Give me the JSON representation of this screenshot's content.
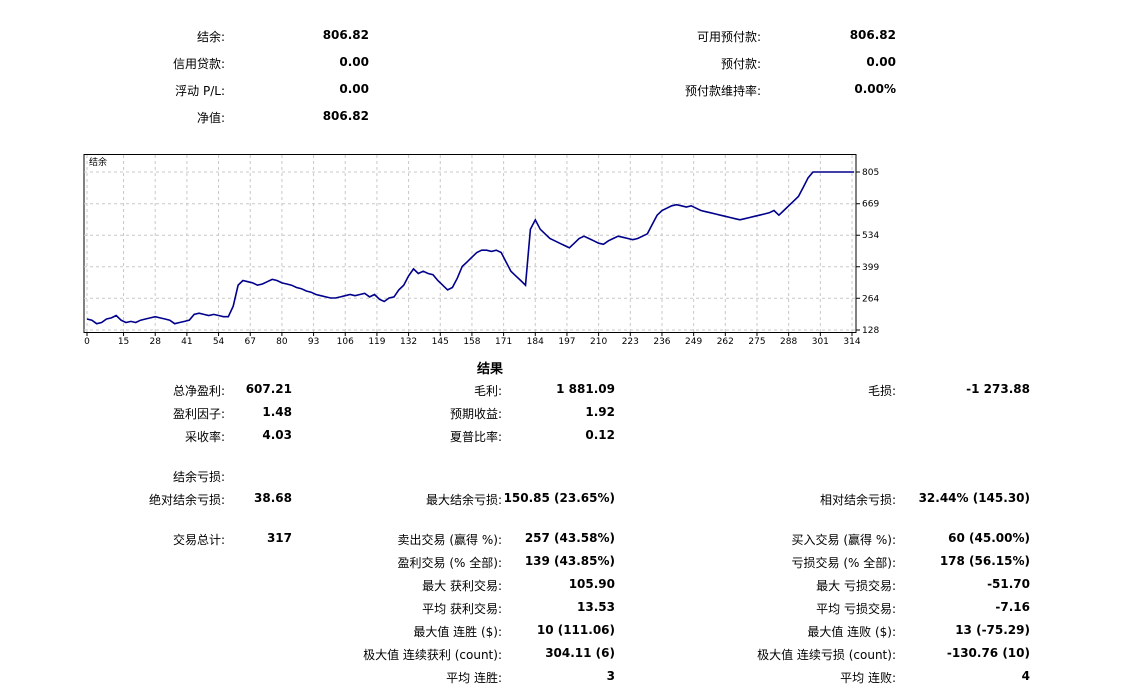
{
  "summary": {
    "balance_label": "结余:",
    "balance": "806.82",
    "credit_label": "信用贷款:",
    "credit": "0.00",
    "floating_label": "浮动 P/L:",
    "floating": "0.00",
    "equity_label": "净值:",
    "equity": "806.82",
    "free_margin_label": "可用预付款:",
    "free_margin": "806.82",
    "margin_label": "预付款:",
    "margin": "0.00",
    "margin_level_label": "预付款维持率:",
    "margin_level": "0.00%"
  },
  "chart_data": {
    "type": "line",
    "title": "结余",
    "x_ticks": [
      "0",
      "15",
      "28",
      "41",
      "54",
      "67",
      "80",
      "93",
      "106",
      "119",
      "132",
      "145",
      "158",
      "171",
      "184",
      "197",
      "210",
      "223",
      "236",
      "249",
      "262",
      "275",
      "288",
      "301",
      "314"
    ],
    "x_tick_values": [
      0,
      15,
      28,
      41,
      54,
      67,
      80,
      93,
      106,
      119,
      132,
      145,
      158,
      171,
      184,
      197,
      210,
      223,
      236,
      249,
      262,
      275,
      288,
      301,
      314
    ],
    "y_ticks": [
      "128",
      "264",
      "399",
      "534",
      "669",
      "805"
    ],
    "y_tick_values": [
      128,
      264,
      399,
      534,
      669,
      805
    ],
    "xlim": [
      0,
      314
    ],
    "ylim": [
      128,
      805
    ],
    "grid": true,
    "series": [
      {
        "color": "#00008b",
        "x": [
          0,
          2,
          4,
          6,
          8,
          10,
          12,
          14,
          16,
          18,
          20,
          22,
          24,
          26,
          28,
          30,
          32,
          34,
          36,
          38,
          40,
          42,
          44,
          46,
          48,
          50,
          52,
          54,
          56,
          58,
          60,
          62,
          64,
          66,
          68,
          70,
          72,
          74,
          76,
          78,
          80,
          82,
          84,
          86,
          88,
          90,
          92,
          94,
          96,
          98,
          100,
          102,
          104,
          106,
          108,
          110,
          112,
          114,
          116,
          118,
          120,
          122,
          124,
          126,
          128,
          130,
          132,
          134,
          136,
          138,
          140,
          142,
          144,
          146,
          148,
          150,
          152,
          154,
          156,
          158,
          160,
          162,
          164,
          166,
          168,
          170,
          172,
          174,
          176,
          178,
          180,
          182,
          184,
          186,
          188,
          190,
          192,
          194,
          196,
          198,
          200,
          202,
          204,
          206,
          208,
          210,
          212,
          214,
          216,
          218,
          220,
          222,
          224,
          226,
          228,
          230,
          232,
          234,
          236,
          238,
          240,
          242,
          244,
          246,
          248,
          250,
          252,
          254,
          256,
          258,
          260,
          262,
          264,
          266,
          268,
          270,
          272,
          274,
          276,
          278,
          280,
          282,
          284,
          286,
          288,
          290,
          292,
          294,
          296,
          298,
          300,
          302,
          304,
          306,
          308,
          310,
          312,
          314,
          316
        ],
        "y": [
          175,
          170,
          155,
          160,
          175,
          180,
          190,
          170,
          160,
          165,
          160,
          170,
          175,
          180,
          185,
          180,
          175,
          170,
          155,
          160,
          165,
          170,
          195,
          200,
          195,
          190,
          195,
          190,
          185,
          185,
          230,
          320,
          340,
          335,
          330,
          320,
          325,
          335,
          345,
          340,
          330,
          325,
          320,
          310,
          305,
          295,
          290,
          280,
          275,
          270,
          265,
          265,
          270,
          275,
          280,
          275,
          280,
          285,
          270,
          280,
          260,
          250,
          265,
          270,
          300,
          320,
          360,
          390,
          370,
          380,
          370,
          365,
          340,
          320,
          300,
          310,
          350,
          400,
          420,
          440,
          460,
          470,
          470,
          465,
          470,
          460,
          420,
          380,
          360,
          340,
          320,
          560,
          600,
          560,
          540,
          520,
          510,
          500,
          490,
          480,
          500,
          520,
          530,
          520,
          510,
          500,
          495,
          510,
          520,
          530,
          525,
          520,
          515,
          520,
          530,
          540,
          580,
          620,
          640,
          650,
          660,
          665,
          660,
          655,
          660,
          650,
          640,
          635,
          630,
          625,
          620,
          615,
          610,
          605,
          600,
          605,
          610,
          615,
          620,
          625,
          630,
          640,
          620,
          640,
          660,
          680,
          700,
          740,
          780,
          805,
          805,
          805,
          805,
          805,
          805,
          805,
          805,
          805,
          805
        ]
      }
    ]
  },
  "results_title": "结果",
  "results": {
    "total_net_profit_label": "总净盈利:",
    "total_net_profit": "607.21",
    "gross_profit_label": "毛利:",
    "gross_profit": "1 881.09",
    "gross_loss_label": "毛损:",
    "gross_loss": "-1 273.88",
    "profit_factor_label": "盈利因子:",
    "profit_factor": "1.48",
    "expected_payoff_label": "预期收益:",
    "expected_payoff": "1.92",
    "recovery_factor_label": "采收率:",
    "recovery_factor": "4.03",
    "sharpe_label": "夏普比率:",
    "sharpe": "0.12",
    "balance_drawdown_label": "结余亏损:",
    "abs_drawdown_label": "绝对结余亏损:",
    "abs_drawdown": "38.68",
    "max_drawdown_label": "最大结余亏损:",
    "max_drawdown": "150.85 (23.65%)",
    "rel_drawdown_label": "相对结余亏损:",
    "rel_drawdown": "32.44% (145.30)",
    "total_trades_label": "交易总计:",
    "total_trades": "317",
    "short_trades_label": "卖出交易 (赢得 %):",
    "short_trades": "257 (43.58%)",
    "long_trades_label": "买入交易 (赢得 %):",
    "long_trades": "60 (45.00%)",
    "profit_trades_label": "盈利交易 (% 全部):",
    "profit_trades": "139 (43.85%)",
    "loss_trades_label": "亏损交易 (% 全部):",
    "loss_trades": "178 (56.15%)",
    "largest_profit_label": "最大 获利交易:",
    "largest_profit": "105.90",
    "largest_loss_label": "最大 亏损交易:",
    "largest_loss": "-51.70",
    "avg_profit_label": "平均 获利交易:",
    "avg_profit": "13.53",
    "avg_loss_label": "平均 亏损交易:",
    "avg_loss": "-7.16",
    "max_consec_wins_label": "最大值 连胜 ($):",
    "max_consec_wins": "10 (111.06)",
    "max_consec_losses_label": "最大值 连败 ($):",
    "max_consec_losses": "13 (-75.29)",
    "maximal_consec_profit_label": "极大值 连续获利 (count):",
    "maximal_consec_profit": "304.11 (6)",
    "maximal_consec_loss_label": "极大值 连续亏损 (count):",
    "maximal_consec_loss": "-130.76 (10)",
    "avg_consec_wins_label": "平均 连胜:",
    "avg_consec_wins": "3",
    "avg_consec_losses_label": "平均 连败:",
    "avg_consec_losses": "4"
  }
}
